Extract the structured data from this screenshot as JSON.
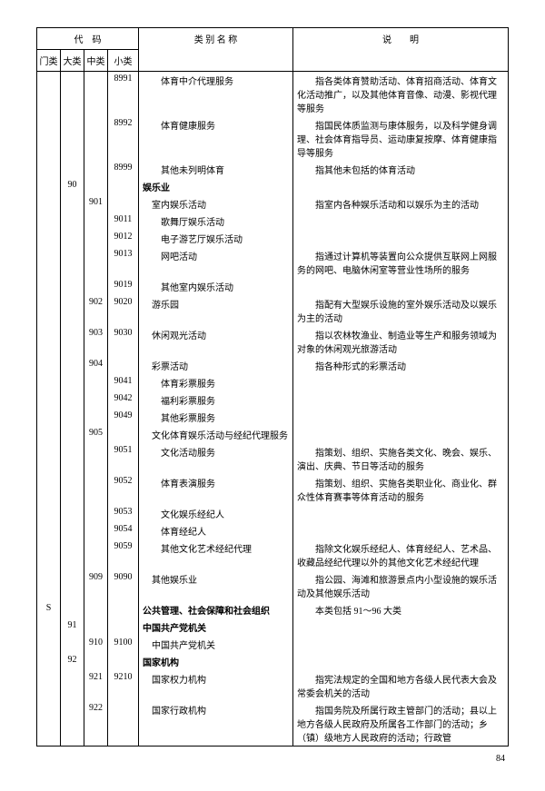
{
  "header": {
    "code": "代　码",
    "men": "门类",
    "da": "大类",
    "zhong": "中类",
    "xiao": "小类",
    "name": "类 别 名 称",
    "desc": "说　　明"
  },
  "rows": [
    {
      "men": "",
      "da": "",
      "zhong": "",
      "xiao": "8991",
      "name": "体育中介代理服务",
      "indent": 2,
      "desc": "指各类体育赞助活动、体育招商活动、体育文化活动推广，以及其他体育音像、动漫、影视代理等服务"
    },
    {
      "men": "",
      "da": "",
      "zhong": "",
      "xiao": "8992",
      "name": "体育健康服务",
      "indent": 2,
      "desc": "指国民体质监测与康体服务，以及科学健身调理、社会体育指导员、运动康复按摩、体育健康指导等服务"
    },
    {
      "men": "",
      "da": "",
      "zhong": "",
      "xiao": "8999",
      "name": "其他未列明体育",
      "indent": 2,
      "desc": "指其他未包括的体育活动"
    },
    {
      "men": "",
      "da": "90",
      "zhong": "",
      "xiao": "",
      "name": "娱乐业",
      "indent": 0,
      "bold": true,
      "desc": ""
    },
    {
      "men": "",
      "da": "",
      "zhong": "901",
      "xiao": "",
      "name": "室内娱乐活动",
      "indent": 1,
      "desc": "指室内各种娱乐活动和以娱乐为主的活动"
    },
    {
      "men": "",
      "da": "",
      "zhong": "",
      "xiao": "9011",
      "name": "歌舞厅娱乐活动",
      "indent": 2,
      "desc": ""
    },
    {
      "men": "",
      "da": "",
      "zhong": "",
      "xiao": "9012",
      "name": "电子游艺厅娱乐活动",
      "indent": 2,
      "desc": ""
    },
    {
      "men": "",
      "da": "",
      "zhong": "",
      "xiao": "9013",
      "name": "网吧活动",
      "indent": 2,
      "desc": "指通过计算机等装置向公众提供互联网上网服务的网吧、电脑休闲室等营业性场所的服务"
    },
    {
      "men": "",
      "da": "",
      "zhong": "",
      "xiao": "9019",
      "name": "其他室内娱乐活动",
      "indent": 2,
      "desc": ""
    },
    {
      "men": "",
      "da": "",
      "zhong": "902",
      "xiao": "9020",
      "name": "游乐园",
      "indent": 1,
      "desc": "指配有大型娱乐设施的室外娱乐活动及以娱乐为主的活动"
    },
    {
      "men": "",
      "da": "",
      "zhong": "903",
      "xiao": "9030",
      "name": "休闲观光活动",
      "indent": 1,
      "desc": "指以农林牧渔业、制造业等生产和服务领域为对象的休闲观光旅游活动"
    },
    {
      "men": "",
      "da": "",
      "zhong": "904",
      "xiao": "",
      "name": "彩票活动",
      "indent": 1,
      "desc": "指各种形式的彩票活动"
    },
    {
      "men": "",
      "da": "",
      "zhong": "",
      "xiao": "9041",
      "name": "体育彩票服务",
      "indent": 2,
      "desc": ""
    },
    {
      "men": "",
      "da": "",
      "zhong": "",
      "xiao": "9042",
      "name": "福利彩票服务",
      "indent": 2,
      "desc": ""
    },
    {
      "men": "",
      "da": "",
      "zhong": "",
      "xiao": "9049",
      "name": "其他彩票服务",
      "indent": 2,
      "desc": ""
    },
    {
      "men": "",
      "da": "",
      "zhong": "905",
      "xiao": "",
      "name": "文化体育娱乐活动与经纪代理服务",
      "indent": 1,
      "desc": ""
    },
    {
      "men": "",
      "da": "",
      "zhong": "",
      "xiao": "9051",
      "name": "文化活动服务",
      "indent": 2,
      "desc": "指策划、组织、实施各类文化、晚会、娱乐、演出、庆典、节日等活动的服务"
    },
    {
      "men": "",
      "da": "",
      "zhong": "",
      "xiao": "9052",
      "name": "体育表演服务",
      "indent": 2,
      "desc": "指策划、组织、实施各类职业化、商业化、群众性体育赛事等体育活动的服务"
    },
    {
      "men": "",
      "da": "",
      "zhong": "",
      "xiao": "9053",
      "name": "文化娱乐经纪人",
      "indent": 2,
      "desc": ""
    },
    {
      "men": "",
      "da": "",
      "zhong": "",
      "xiao": "9054",
      "name": "体育经纪人",
      "indent": 2,
      "desc": ""
    },
    {
      "men": "",
      "da": "",
      "zhong": "",
      "xiao": "9059",
      "name": "其他文化艺术经纪代理",
      "indent": 2,
      "desc": "指除文化娱乐经纪人、体育经纪人、艺术品、收藏品经纪代理以外的其他文化艺术经纪代理"
    },
    {
      "men": "",
      "da": "",
      "zhong": "909",
      "xiao": "9090",
      "name": "其他娱乐业",
      "indent": 1,
      "desc": "指公园、海滩和旅游景点内小型设施的娱乐活动及其他娱乐活动"
    },
    {
      "men": "S",
      "da": "",
      "zhong": "",
      "xiao": "",
      "name": "公共管理、社会保障和社会组织",
      "indent": 0,
      "bold": true,
      "desc": "本类包括 91～96 大类"
    },
    {
      "men": "",
      "da": "91",
      "zhong": "",
      "xiao": "",
      "name": "中国共产党机关",
      "indent": 0,
      "bold": true,
      "desc": ""
    },
    {
      "men": "",
      "da": "",
      "zhong": "910",
      "xiao": "9100",
      "name": "中国共产党机关",
      "indent": 1,
      "desc": ""
    },
    {
      "men": "",
      "da": "92",
      "zhong": "",
      "xiao": "",
      "name": "国家机构",
      "indent": 0,
      "bold": true,
      "desc": ""
    },
    {
      "men": "",
      "da": "",
      "zhong": "921",
      "xiao": "9210",
      "name": "国家权力机构",
      "indent": 1,
      "desc": "指宪法规定的全国和地方各级人民代表大会及常委会机关的活动"
    },
    {
      "men": "",
      "da": "",
      "zhong": "922",
      "xiao": "",
      "name": "国家行政机构",
      "indent": 1,
      "desc": "指国务院及所属行政主管部门的活动；县以上地方各级人民政府及所属各工作部门的活动；乡（镇）级地方人民政府的活动；行政管"
    }
  ],
  "page": "84"
}
